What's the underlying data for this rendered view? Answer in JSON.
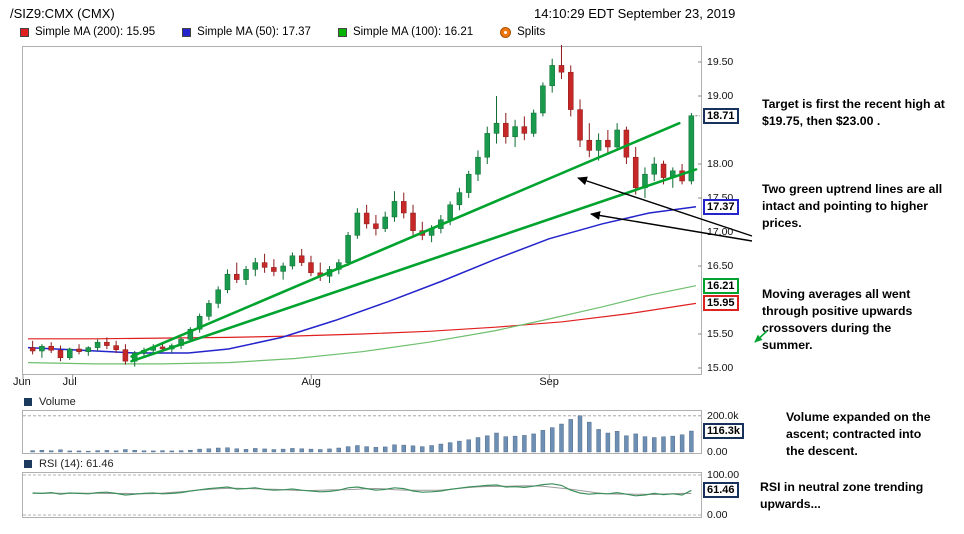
{
  "header": {
    "symbol": "/SIZ9:CMX (CMX)",
    "timestamp": "14:10:29 EDT September 23, 2019"
  },
  "legend": {
    "ma200": {
      "label": "Simple MA (200): 15.95",
      "color": "#e02020"
    },
    "ma50": {
      "label": "Simple MA (50): 17.37",
      "color": "#2424cc"
    },
    "ma100": {
      "label": "Simple MA (100): 16.21",
      "color": "#00b400"
    },
    "splits": {
      "label": "Splits",
      "color": "#f07812"
    }
  },
  "panels": {
    "volume": {
      "label": "Volume"
    },
    "rsi": {
      "label": "RSI (14): 61.46"
    }
  },
  "annotations": {
    "target": {
      "lines": [
        "Target is first the recent high at",
        "$19.75, then $23.00 ."
      ]
    },
    "trend": {
      "lines": [
        "Two green uptrend lines are all",
        "intact and pointing to higher",
        "prices."
      ]
    },
    "ma": {
      "lines": [
        "Moving averages all went",
        "through positive upwards",
        "crossovers during the",
        "summer."
      ]
    },
    "volume": {
      "lines": [
        "Volume expanded on the",
        "ascent; contracted into",
        "the descent."
      ]
    },
    "rsi": {
      "lines": [
        "RSI in neutral zone trending",
        "upwards..."
      ]
    }
  },
  "annotation_arrows": [
    {
      "from": [
        752,
        236
      ],
      "to": [
        578,
        178
      ]
    },
    {
      "from": [
        752,
        241
      ],
      "to": [
        591,
        214
      ]
    }
  ],
  "green_arrow": {
    "from": [
      767,
      331
    ],
    "to": [
      755,
      342
    ]
  },
  "colors": {
    "up": "#1a9a4c",
    "up_dark": "#0c6b31",
    "down": "#c62828",
    "down_dark": "#8c1a1a",
    "trendline": "#00a32e",
    "volume": "#6d8fb3",
    "volume_dark": "#44607f",
    "rsi": "#3c8f5a",
    "tag_dark": "#16325c",
    "panel_swatch": "#1b3a5e"
  },
  "chart_data": [
    {
      "type": "candlestick",
      "title": "/SIZ9:CMX (CMX)",
      "ylim": [
        15.0,
        19.5
      ],
      "last_price": 18.71,
      "y_ticks": [
        {
          "text": "19.50",
          "v": 19.5
        },
        {
          "text": "19.00",
          "v": 19.0
        },
        {
          "text": "18.00",
          "v": 18.0
        },
        {
          "text": "17.50",
          "v": 17.5
        },
        {
          "text": "17.00",
          "v": 17.0
        },
        {
          "text": "16.50",
          "v": 16.5
        },
        {
          "text": "15.50",
          "v": 15.5
        },
        {
          "text": "15.00",
          "v": 15.0
        }
      ],
      "price_tags": [
        {
          "text": "18.71",
          "v": 18.71,
          "border": "#16325c"
        },
        {
          "text": "17.37",
          "v": 17.37,
          "border": "#2424cc"
        },
        {
          "text": "16.21",
          "v": 16.21,
          "border": "#00a32e"
        },
        {
          "text": "15.95",
          "v": 15.95,
          "border": "#dd2222"
        }
      ],
      "x_labels": [
        {
          "text": "Jun",
          "pos": 0.0
        },
        {
          "text": "Jul",
          "pos": 0.073
        },
        {
          "text": "Aug",
          "pos": 0.424
        },
        {
          "text": "Sep",
          "pos": 0.774
        }
      ],
      "ohlc": [
        [
          15.3,
          15.4,
          15.2,
          15.25
        ],
        [
          15.25,
          15.35,
          15.15,
          15.32
        ],
        [
          15.32,
          15.38,
          15.22,
          15.26
        ],
        [
          15.26,
          15.33,
          15.1,
          15.15
        ],
        [
          15.15,
          15.3,
          15.12,
          15.28
        ],
        [
          15.28,
          15.35,
          15.2,
          15.24
        ],
        [
          15.24,
          15.32,
          15.18,
          15.3
        ],
        [
          15.3,
          15.42,
          15.25,
          15.38
        ],
        [
          15.38,
          15.45,
          15.28,
          15.33
        ],
        [
          15.33,
          15.4,
          15.22,
          15.27
        ],
        [
          15.27,
          15.35,
          15.05,
          15.1
        ],
        [
          15.1,
          15.25,
          15.02,
          15.22
        ],
        [
          15.22,
          15.3,
          15.15,
          15.26
        ],
        [
          15.26,
          15.35,
          15.2,
          15.31
        ],
        [
          15.31,
          15.38,
          15.24,
          15.28
        ],
        [
          15.28,
          15.36,
          15.22,
          15.33
        ],
        [
          15.33,
          15.45,
          15.28,
          15.42
        ],
        [
          15.42,
          15.6,
          15.38,
          15.57
        ],
        [
          15.57,
          15.8,
          15.52,
          15.76
        ],
        [
          15.76,
          16.0,
          15.7,
          15.95
        ],
        [
          15.95,
          16.2,
          15.88,
          16.15
        ],
        [
          16.15,
          16.45,
          16.1,
          16.38
        ],
        [
          16.38,
          16.55,
          16.25,
          16.3
        ],
        [
          16.3,
          16.5,
          16.22,
          16.45
        ],
        [
          16.45,
          16.62,
          16.35,
          16.55
        ],
        [
          16.55,
          16.68,
          16.4,
          16.48
        ],
        [
          16.48,
          16.6,
          16.35,
          16.42
        ],
        [
          16.42,
          16.55,
          16.3,
          16.5
        ],
        [
          16.5,
          16.7,
          16.45,
          16.65
        ],
        [
          16.65,
          16.75,
          16.5,
          16.55
        ],
        [
          16.55,
          16.65,
          16.35,
          16.4
        ],
        [
          16.4,
          16.55,
          16.28,
          16.35
        ],
        [
          16.35,
          16.5,
          16.25,
          16.45
        ],
        [
          16.45,
          16.6,
          16.38,
          16.55
        ],
        [
          16.55,
          17.0,
          16.5,
          16.95
        ],
        [
          16.95,
          17.35,
          16.9,
          17.28
        ],
        [
          17.28,
          17.4,
          17.05,
          17.12
        ],
        [
          17.12,
          17.25,
          16.95,
          17.05
        ],
        [
          17.05,
          17.3,
          17.0,
          17.22
        ],
        [
          17.22,
          17.6,
          17.15,
          17.45
        ],
        [
          17.45,
          17.58,
          17.2,
          17.28
        ],
        [
          17.28,
          17.4,
          16.95,
          17.02
        ],
        [
          17.02,
          17.15,
          16.88,
          16.95
        ],
        [
          16.95,
          17.1,
          16.85,
          17.05
        ],
        [
          17.05,
          17.25,
          16.98,
          17.18
        ],
        [
          17.18,
          17.45,
          17.1,
          17.4
        ],
        [
          17.4,
          17.65,
          17.32,
          17.58
        ],
        [
          17.58,
          17.9,
          17.5,
          17.85
        ],
        [
          17.85,
          18.2,
          17.75,
          18.1
        ],
        [
          18.1,
          18.55,
          18.0,
          18.45
        ],
        [
          18.45,
          19.0,
          18.3,
          18.6
        ],
        [
          18.6,
          18.75,
          18.3,
          18.4
        ],
        [
          18.4,
          18.65,
          18.25,
          18.55
        ],
        [
          18.55,
          18.7,
          18.35,
          18.45
        ],
        [
          18.45,
          18.8,
          18.4,
          18.75
        ],
        [
          18.75,
          19.2,
          18.7,
          19.15
        ],
        [
          19.15,
          19.55,
          19.05,
          19.45
        ],
        [
          19.45,
          19.75,
          19.25,
          19.35
        ],
        [
          19.35,
          19.45,
          18.7,
          18.8
        ],
        [
          18.8,
          18.95,
          18.25,
          18.35
        ],
        [
          18.35,
          18.6,
          18.1,
          18.2
        ],
        [
          18.2,
          18.45,
          18.05,
          18.35
        ],
        [
          18.35,
          18.5,
          18.15,
          18.25
        ],
        [
          18.25,
          18.6,
          18.2,
          18.5
        ],
        [
          18.5,
          18.55,
          18.0,
          18.1
        ],
        [
          18.1,
          18.25,
          17.55,
          17.65
        ],
        [
          17.65,
          17.95,
          17.5,
          17.85
        ],
        [
          17.85,
          18.1,
          17.75,
          18.0
        ],
        [
          18.0,
          18.05,
          17.7,
          17.8
        ],
        [
          17.8,
          17.95,
          17.65,
          17.9
        ],
        [
          17.9,
          18.0,
          17.7,
          17.75
        ],
        [
          17.75,
          18.75,
          17.7,
          18.71
        ]
      ],
      "ma_series": [
        {
          "name": "Simple MA (200)",
          "last": 15.95,
          "color": "#e02020",
          "width": 1.2,
          "points": [
            [
              0,
              15.43
            ],
            [
              0.1,
              15.43
            ],
            [
              0.2,
              15.44
            ],
            [
              0.3,
              15.45
            ],
            [
              0.4,
              15.47
            ],
            [
              0.5,
              15.5
            ],
            [
              0.6,
              15.54
            ],
            [
              0.7,
              15.6
            ],
            [
              0.8,
              15.68
            ],
            [
              0.9,
              15.8
            ],
            [
              1,
              15.95
            ]
          ]
        },
        {
          "name": "Simple MA (100)",
          "last": 16.21,
          "color": "#6fbf6f",
          "width": 1.2,
          "points": [
            [
              0,
              15.08
            ],
            [
              0.1,
              15.06
            ],
            [
              0.2,
              15.06
            ],
            [
              0.3,
              15.08
            ],
            [
              0.4,
              15.14
            ],
            [
              0.5,
              15.24
            ],
            [
              0.6,
              15.38
            ],
            [
              0.7,
              15.55
            ],
            [
              0.78,
              15.72
            ],
            [
              0.86,
              15.9
            ],
            [
              0.93,
              16.07
            ],
            [
              1,
              16.21
            ]
          ]
        },
        {
          "name": "Simple MA (50)",
          "last": 17.37,
          "color": "#2424cc",
          "width": 1.5,
          "points": [
            [
              0,
              15.3
            ],
            [
              0.08,
              15.26
            ],
            [
              0.16,
              15.22
            ],
            [
              0.24,
              15.22
            ],
            [
              0.3,
              15.28
            ],
            [
              0.38,
              15.45
            ],
            [
              0.46,
              15.7
            ],
            [
              0.54,
              15.98
            ],
            [
              0.62,
              16.28
            ],
            [
              0.7,
              16.6
            ],
            [
              0.78,
              16.9
            ],
            [
              0.86,
              17.12
            ],
            [
              0.93,
              17.28
            ],
            [
              1,
              17.37
            ]
          ]
        }
      ],
      "trendlines": [
        [
          [
            0.155,
            15.17
          ],
          [
            0.975,
            18.6
          ]
        ],
        [
          [
            0.155,
            15.1
          ],
          [
            1.0,
            17.92
          ]
        ]
      ]
    },
    {
      "type": "bar",
      "name": "Volume",
      "ylim": [
        0,
        210
      ],
      "dash_level": 200,
      "values": [
        8,
        10,
        7,
        12,
        6,
        6,
        5,
        8,
        9,
        7,
        14,
        10,
        7,
        6,
        8,
        6,
        8,
        10,
        16,
        18,
        22,
        24,
        18,
        15,
        20,
        17,
        14,
        16,
        20,
        18,
        16,
        14,
        17,
        22,
        30,
        36,
        30,
        26,
        28,
        40,
        38,
        34,
        30,
        36,
        44,
        52,
        60,
        68,
        80,
        90,
        105,
        85,
        88,
        92,
        100,
        120,
        135,
        155,
        180,
        200,
        165,
        125,
        105,
        115,
        90,
        100,
        85,
        80,
        84,
        88,
        95,
        116.3
      ],
      "y_ticks": [
        {
          "text": "200.0k",
          "v": 200
        },
        {
          "text": "0.00",
          "v": 0
        }
      ],
      "last_value": 116.3,
      "last_label": "116.3k"
    },
    {
      "type": "line",
      "name": "RSI (14)",
      "ylim": [
        0,
        100
      ],
      "values": [
        55,
        54,
        56,
        52,
        55,
        54,
        53,
        56,
        57,
        54,
        50,
        52,
        54,
        55,
        53,
        54,
        56,
        60,
        63,
        66,
        68,
        70,
        65,
        66,
        68,
        64,
        62,
        63,
        65,
        62,
        60,
        58,
        59,
        62,
        68,
        70,
        66,
        62,
        64,
        68,
        66,
        60,
        57,
        58,
        60,
        64,
        67,
        70,
        72,
        74,
        75,
        70,
        71,
        69,
        72,
        76,
        78,
        74,
        62,
        55,
        52,
        54,
        53,
        56,
        52,
        48,
        50,
        54,
        51,
        53,
        50,
        61.46
      ],
      "y_ticks": [
        {
          "text": "100.00",
          "v": 100
        },
        {
          "text": "0.00",
          "v": 0
        }
      ],
      "last_value": 61.46
    }
  ]
}
